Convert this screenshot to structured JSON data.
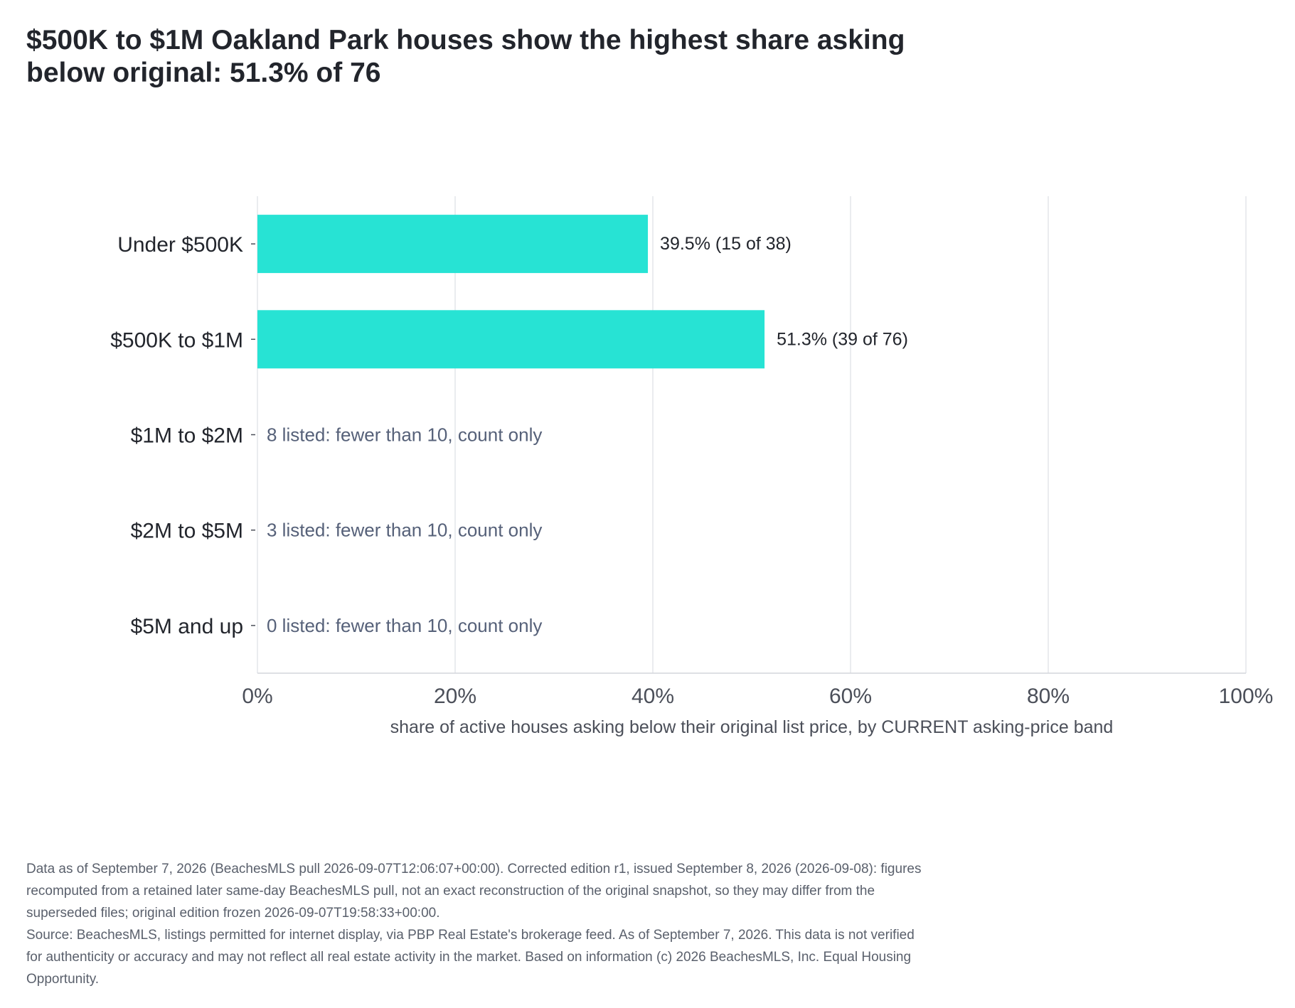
{
  "title": "$500K to $1M Oakland Park houses show the highest share asking below original: 51.3% of 76",
  "chart_data": {
    "type": "bar",
    "orientation": "horizontal",
    "categories": [
      "Under $500K",
      "$500K to $1M",
      "$1M to $2M",
      "$2M to $5M",
      "$5M and up"
    ],
    "values": [
      39.5,
      51.3,
      null,
      null,
      null
    ],
    "bar_labels": [
      "39.5%  (15 of 38)",
      "51.3%  (39 of 76)",
      "",
      "",
      ""
    ],
    "notes": [
      "",
      "",
      "8 listed: fewer than 10, count only",
      "3 listed: fewer than 10, count only",
      "0 listed: fewer than 10, count only"
    ],
    "xlabel": "share of active houses asking below their original list price, by CURRENT asking-price band",
    "xlim": [
      0,
      100
    ],
    "xticks": [
      0,
      20,
      40,
      60,
      80,
      100
    ],
    "xtick_labels": [
      "0%",
      "20%",
      "40%",
      "60%",
      "80%",
      "100%"
    ],
    "grid": true,
    "bar_color": "#27e3d4",
    "label_color": "#22252c",
    "note_color": "#566179"
  },
  "footnote": {
    "edition": "Data as of September 7, 2026 (BeachesMLS pull 2026-09-07T12:06:07+00:00). Corrected edition r1, issued September 8, 2026 (2026-09-08): figures\nrecomputed from a retained later same-day BeachesMLS pull, not an exact reconstruction of the original snapshot, so they may differ from the\nsuperseded files; original edition frozen 2026-09-07T19:58:33+00:00.",
    "source": "Source: BeachesMLS, listings permitted for internet display, via PBP Real Estate's brokerage feed. As of September 7, 2026. This data is not verified\nfor authenticity or accuracy and may not reflect all real estate activity in the market. Based on information (c) 2026 BeachesMLS, Inc. Equal Housing\nOpportunity."
  }
}
